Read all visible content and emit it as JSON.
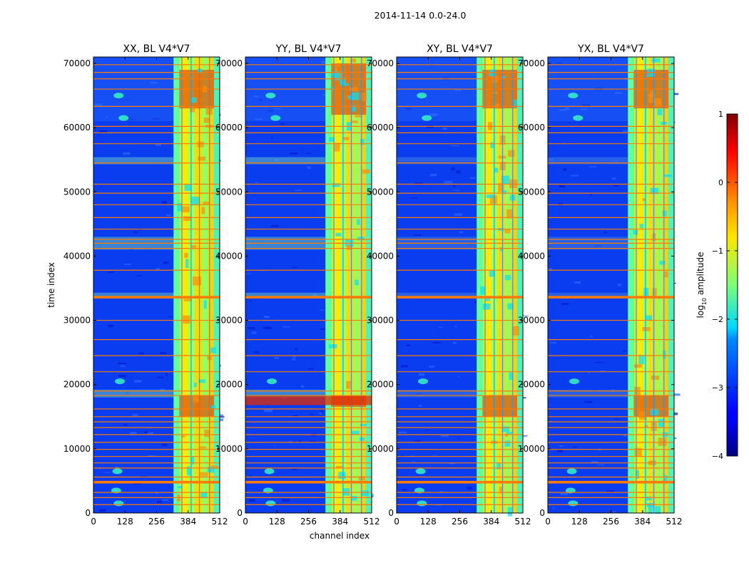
{
  "chart_data": {
    "type": "heatmap",
    "suptitle": "2014-11-14 0.0-24.0",
    "xlabel": "channel index",
    "ylabel": "time index",
    "xlim": [
      0,
      512
    ],
    "ylim": [
      0,
      71000
    ],
    "x_ticks": [
      0,
      128,
      256,
      384,
      512
    ],
    "y_ticks": [
      0,
      10000,
      20000,
      30000,
      40000,
      50000,
      60000,
      70000
    ],
    "y_tick_labels_shown": [
      "0",
      "10000",
      "20000",
      "30000",
      "40000",
      "50000",
      "60000",
      "70000"
    ],
    "panels": [
      {
        "title": "XX, BL V4*V7",
        "pol": "XX"
      },
      {
        "title": "YY, BL V4*V7",
        "pol": "YY"
      },
      {
        "title": "XY, BL V4*V7",
        "pol": "XY"
      },
      {
        "title": "YX, BL V4*V7",
        "pol": "YX"
      }
    ],
    "colorbar": {
      "label_main": "log",
      "label_sub": "10",
      "label_tail": " amplitude",
      "range": [
        -4,
        1
      ],
      "ticks": [
        1,
        0,
        -1,
        -2,
        -3,
        -4
      ],
      "tick_labels": [
        "1",
        "0",
        "−1",
        "−2",
        "−3",
        "−4"
      ],
      "colormap": "jet"
    },
    "bright_band_channels": [
      325,
      512
    ],
    "flagged_time_rows": [
      1300,
      2400,
      3200,
      4700,
      5600,
      7000,
      7800,
      8800,
      9900,
      11000,
      12200,
      13300,
      14200,
      15000,
      16200,
      18300,
      19000,
      22000,
      24500,
      27000,
      30000,
      33500,
      37800,
      41200,
      42000,
      42600,
      44200,
      46000,
      48000,
      49800,
      51200,
      54500,
      57500,
      59200,
      60200,
      63300,
      66000,
      67600,
      68600,
      69800
    ]
  }
}
